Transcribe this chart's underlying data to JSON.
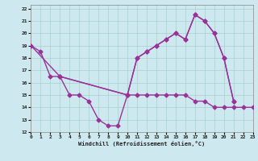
{
  "background_color": "#cde8ee",
  "grid_color": "#aacfcc",
  "line_color": "#993399",
  "xlim": [
    0,
    23
  ],
  "ylim": [
    12,
    22.3
  ],
  "yticks": [
    12,
    13,
    14,
    15,
    16,
    17,
    18,
    19,
    20,
    21,
    22
  ],
  "xticks": [
    0,
    1,
    2,
    3,
    4,
    5,
    6,
    7,
    8,
    9,
    10,
    11,
    12,
    13,
    14,
    15,
    16,
    17,
    18,
    19,
    20,
    21,
    22,
    23
  ],
  "xlabel": "Windchill (Refroidissement éolien,°C)",
  "line1_x": [
    0,
    1,
    2,
    3,
    4,
    5,
    6,
    7,
    8,
    9,
    10,
    11,
    12,
    13,
    14,
    15,
    16,
    17,
    18,
    19,
    20,
    21
  ],
  "line1_y": [
    19,
    18.5,
    16.5,
    16.5,
    15.0,
    15.0,
    14.5,
    13.0,
    12.5,
    12.5,
    15.0,
    18.0,
    18.5,
    19.0,
    19.5,
    20.0,
    19.5,
    21.5,
    21.0,
    20.0,
    18.0,
    14.5
  ],
  "line2_x": [
    0,
    3,
    10,
    11,
    12,
    13,
    14,
    15,
    16,
    17,
    18,
    19,
    20,
    21
  ],
  "line2_y": [
    19,
    16.5,
    15.0,
    18.0,
    18.5,
    19.0,
    19.5,
    20.0,
    19.5,
    21.5,
    21.0,
    20.0,
    18.0,
    14.5
  ],
  "line3_x": [
    3,
    10,
    11,
    12,
    13,
    14,
    15,
    16,
    17,
    18,
    19,
    20,
    21,
    22,
    23
  ],
  "line3_y": [
    16.5,
    15.0,
    15.0,
    15.0,
    15.0,
    15.0,
    15.0,
    15.0,
    14.5,
    14.5,
    14.0,
    14.0,
    14.0,
    14.0,
    14.0
  ]
}
